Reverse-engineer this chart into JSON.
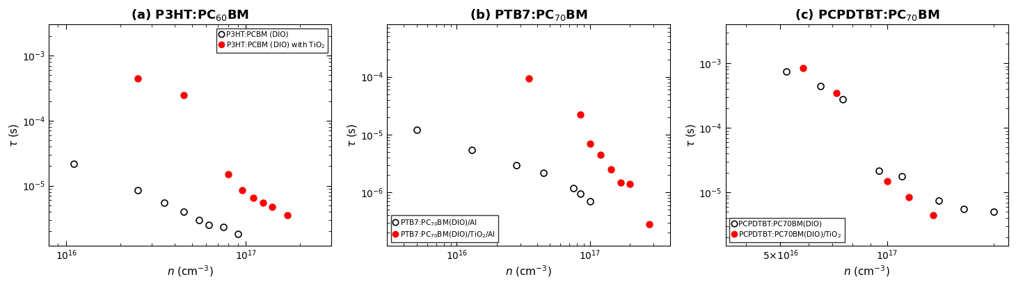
{
  "panels": [
    {
      "label": "(a)",
      "title_main": "P3HT:PC",
      "title_sub": "60",
      "title_end": "BM",
      "xlim": [
        8000000000000000.0,
        3e+17
      ],
      "ylim": [
        1.2e-06,
        0.003
      ],
      "xticks_major": [
        1e+16,
        1e+17
      ],
      "xtick_labels": [
        "$10^{16}$",
        "$10^{17}$"
      ],
      "ytick_vals": [
        1e-05,
        0.0001,
        0.001
      ],
      "ytick_labels": [
        "$10^{-5}$",
        "$10^{-4}$",
        "$10^{-3}$"
      ],
      "ylabel": "τ (s)",
      "xlabel": "n (cm⁻³)",
      "legend_loc": "upper right",
      "legend_entries": [
        "P3HT:PCBM (DIO)",
        "P3HT:PCBM (DIO) with TiO$_2$"
      ],
      "series": [
        {
          "x": [
            1.1e+16,
            2.5e+16,
            3.5e+16,
            4.5e+16,
            5.5e+16,
            6.2e+16,
            7.5e+16,
            9e+16
          ],
          "y": [
            2.2e-05,
            8.5e-06,
            5.5e-06,
            4e-06,
            3e-06,
            2.5e-06,
            2.3e-06,
            1.8e-06
          ],
          "color": "black",
          "filled": false
        },
        {
          "x": [
            2.5e+16,
            4.5e+16,
            8e+16,
            9.5e+16,
            1.1e+17,
            1.25e+17,
            1.4e+17,
            1.7e+17
          ],
          "y": [
            0.00045,
            0.00025,
            1.5e-05,
            8.5e-06,
            6.5e-06,
            5.5e-06,
            4.8e-06,
            3.5e-06
          ],
          "color": "red",
          "filled": true
        }
      ]
    },
    {
      "label": "(b)",
      "title_main": "PTB7:PC",
      "title_sub": "70",
      "title_end": "BM",
      "xlim": [
        3000000000000000.0,
        4e+17
      ],
      "ylim": [
        1.2e-07,
        0.0008
      ],
      "xticks_major": [
        1e+16,
        1e+17
      ],
      "xtick_labels": [
        "$10^{16}$",
        "$10^{17}$"
      ],
      "ytick_vals": [
        1e-06,
        1e-05,
        0.0001
      ],
      "ytick_labels": [
        "$10^{-6}$",
        "$10^{-5}$",
        "$10^{-4}$"
      ],
      "ylabel": "τ (s)",
      "xlabel": "n (cm⁻³)",
      "legend_loc": "lower left",
      "legend_entries": [
        "PTB7:PC$_{70}$BM(DIO)/Al",
        "PTB7:PC$_{70}$BM(DIO)/TiO$_2$/Al"
      ],
      "series": [
        {
          "x": [
            5000000000000000.0,
            1.3e+16,
            2.8e+16,
            4.5e+16,
            7.5e+16,
            8.5e+16,
            1e+17
          ],
          "y": [
            1.2e-05,
            5.5e-06,
            3e-06,
            2.2e-06,
            1.2e-06,
            9.5e-07,
            7e-07
          ],
          "color": "black",
          "filled": false
        },
        {
          "x": [
            3.5e+16,
            8.5e+16,
            1e+17,
            1.2e+17,
            1.45e+17,
            1.7e+17,
            2e+17,
            2.8e+17
          ],
          "y": [
            9.5e-05,
            2.2e-05,
            7e-06,
            4.5e-06,
            2.5e-06,
            1.5e-06,
            1.4e-06,
            2.8e-07
          ],
          "color": "red",
          "filled": true
        }
      ]
    },
    {
      "label": "(c)",
      "title_main": "PCPDTBT:PC",
      "title_sub": "70",
      "title_end": "BM",
      "xlim": [
        3.5e+16,
        2.2e+17
      ],
      "ylim": [
        1.5e-06,
        0.004
      ],
      "xticks_major": [
        5e+16,
        1e+17
      ],
      "xtick_labels": [
        "$5{\\times}10^{16}$",
        "$10^{17}$"
      ],
      "ytick_vals": [
        1e-05,
        0.0001,
        0.001
      ],
      "ytick_labels": [
        "$10^{-5}$",
        "$10^{-4}$",
        "$10^{-3}$"
      ],
      "ylabel": "τ (s)",
      "xlabel": "n (cm⁻³)",
      "legend_loc": "lower left",
      "legend_entries": [
        "PCPDTBT:PC70BM(DIO)",
        "PCPDTBT:PC70BM(DIO)/TiO$_2$"
      ],
      "series": [
        {
          "x": [
            5.2e+16,
            6.5e+16,
            7.5e+16,
            9.5e+16,
            1.1e+17,
            1.4e+17,
            1.65e+17,
            2e+17
          ],
          "y": [
            0.00075,
            0.00045,
            0.00028,
            2.2e-05,
            1.8e-05,
            7.5e-06,
            5.5e-06,
            5e-06
          ],
          "color": "black",
          "filled": false
        },
        {
          "x": [
            5.8e+16,
            7.2e+16,
            1e+17,
            1.15e+17,
            1.35e+17
          ],
          "y": [
            0.00085,
            0.00035,
            1.5e-05,
            8.5e-06,
            4.5e-06
          ],
          "color": "red",
          "filled": true
        }
      ]
    }
  ],
  "fig_width": 14.6,
  "fig_height": 4.12,
  "dpi": 100
}
